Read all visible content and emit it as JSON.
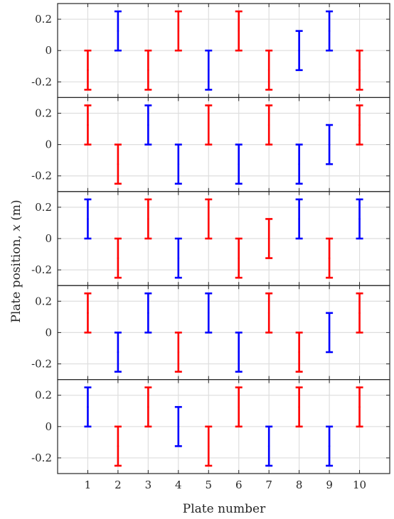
{
  "chart_data": {
    "type": "errorbar",
    "xlabel": "Plate number",
    "ylabel": "Plate position, x (m)",
    "ylabel_parts": {
      "prefix": "Plate position, ",
      "variable": "x",
      "suffix": " (m)"
    },
    "x_ticks": [
      1,
      2,
      3,
      4,
      5,
      6,
      7,
      8,
      9,
      10
    ],
    "x_tick_labels": [
      "1",
      "2",
      "3",
      "4",
      "5",
      "6",
      "7",
      "8",
      "9",
      "10"
    ],
    "xlim": [
      0,
      11
    ],
    "ylim": [
      -0.3,
      0.3
    ],
    "y_ticks": [
      -0.2,
      0,
      0.2
    ],
    "y_tick_labels": [
      "-0.2",
      "0",
      "0.2"
    ],
    "grid": true,
    "colors": {
      "red": "#ff0000",
      "blue": "#0000ff"
    },
    "panels": [
      {
        "plates": [
          {
            "x": 1,
            "low": -0.25,
            "high": 0,
            "color": "red"
          },
          {
            "x": 2,
            "low": 0,
            "high": 0.25,
            "color": "blue"
          },
          {
            "x": 3,
            "low": -0.25,
            "high": 0,
            "color": "red"
          },
          {
            "x": 4,
            "low": 0,
            "high": 0.25,
            "color": "red"
          },
          {
            "x": 5,
            "low": -0.25,
            "high": 0,
            "color": "blue"
          },
          {
            "x": 6,
            "low": 0,
            "high": 0.25,
            "color": "red"
          },
          {
            "x": 7,
            "low": -0.25,
            "high": 0,
            "color": "red"
          },
          {
            "x": 8,
            "low": -0.125,
            "high": 0.125,
            "color": "blue"
          },
          {
            "x": 9,
            "low": 0,
            "high": 0.25,
            "color": "blue"
          },
          {
            "x": 10,
            "low": -0.25,
            "high": 0,
            "color": "red"
          }
        ]
      },
      {
        "plates": [
          {
            "x": 1,
            "low": 0,
            "high": 0.25,
            "color": "red"
          },
          {
            "x": 2,
            "low": -0.25,
            "high": 0,
            "color": "red"
          },
          {
            "x": 3,
            "low": 0,
            "high": 0.25,
            "color": "blue"
          },
          {
            "x": 4,
            "low": -0.25,
            "high": 0,
            "color": "blue"
          },
          {
            "x": 5,
            "low": 0,
            "high": 0.25,
            "color": "red"
          },
          {
            "x": 6,
            "low": -0.25,
            "high": 0,
            "color": "blue"
          },
          {
            "x": 7,
            "low": 0,
            "high": 0.25,
            "color": "red"
          },
          {
            "x": 8,
            "low": -0.25,
            "high": 0,
            "color": "blue"
          },
          {
            "x": 9,
            "low": -0.125,
            "high": 0.125,
            "color": "blue"
          },
          {
            "x": 10,
            "low": 0,
            "high": 0.25,
            "color": "red"
          }
        ]
      },
      {
        "plates": [
          {
            "x": 1,
            "low": 0,
            "high": 0.25,
            "color": "blue"
          },
          {
            "x": 2,
            "low": -0.25,
            "high": 0,
            "color": "red"
          },
          {
            "x": 3,
            "low": 0,
            "high": 0.25,
            "color": "red"
          },
          {
            "x": 4,
            "low": -0.25,
            "high": 0,
            "color": "blue"
          },
          {
            "x": 5,
            "low": 0,
            "high": 0.25,
            "color": "red"
          },
          {
            "x": 6,
            "low": -0.25,
            "high": 0,
            "color": "red"
          },
          {
            "x": 7,
            "low": -0.125,
            "high": 0.125,
            "color": "red"
          },
          {
            "x": 8,
            "low": 0,
            "high": 0.25,
            "color": "blue"
          },
          {
            "x": 9,
            "low": -0.25,
            "high": 0,
            "color": "red"
          },
          {
            "x": 10,
            "low": 0,
            "high": 0.25,
            "color": "blue"
          }
        ]
      },
      {
        "plates": [
          {
            "x": 1,
            "low": 0,
            "high": 0.25,
            "color": "red"
          },
          {
            "x": 2,
            "low": -0.25,
            "high": 0,
            "color": "blue"
          },
          {
            "x": 3,
            "low": 0,
            "high": 0.25,
            "color": "blue"
          },
          {
            "x": 4,
            "low": -0.25,
            "high": 0,
            "color": "red"
          },
          {
            "x": 5,
            "low": 0,
            "high": 0.25,
            "color": "blue"
          },
          {
            "x": 6,
            "low": -0.25,
            "high": 0,
            "color": "blue"
          },
          {
            "x": 7,
            "low": 0,
            "high": 0.25,
            "color": "red"
          },
          {
            "x": 8,
            "low": -0.25,
            "high": 0,
            "color": "red"
          },
          {
            "x": 9,
            "low": -0.125,
            "high": 0.125,
            "color": "blue"
          },
          {
            "x": 10,
            "low": 0,
            "high": 0.25,
            "color": "red"
          }
        ]
      },
      {
        "plates": [
          {
            "x": 1,
            "low": 0,
            "high": 0.25,
            "color": "blue"
          },
          {
            "x": 2,
            "low": -0.25,
            "high": 0,
            "color": "red"
          },
          {
            "x": 3,
            "low": 0,
            "high": 0.25,
            "color": "red"
          },
          {
            "x": 4,
            "low": -0.125,
            "high": 0.125,
            "color": "blue"
          },
          {
            "x": 5,
            "low": -0.25,
            "high": 0,
            "color": "red"
          },
          {
            "x": 6,
            "low": 0,
            "high": 0.25,
            "color": "red"
          },
          {
            "x": 7,
            "low": -0.25,
            "high": 0,
            "color": "blue"
          },
          {
            "x": 8,
            "low": 0,
            "high": 0.25,
            "color": "red"
          },
          {
            "x": 9,
            "low": -0.25,
            "high": 0,
            "color": "blue"
          },
          {
            "x": 10,
            "low": 0,
            "high": 0.25,
            "color": "red"
          }
        ]
      }
    ]
  }
}
